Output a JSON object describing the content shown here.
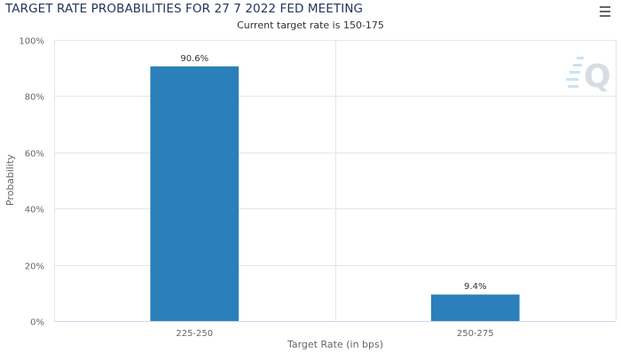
{
  "header": {
    "title": "TARGET RATE PROBABILITIES FOR 27 7 2022 FED MEETING",
    "subtitle": "Current target rate is 150-175"
  },
  "watermark": {
    "letter": "Q"
  },
  "icons": {
    "menu": "hamburger-menu-icon"
  },
  "colors": {
    "bar": "#2b7fba",
    "grid": "#e6e6e6",
    "axis_line": "#ccd6eb",
    "title": "#24345c"
  },
  "chart_data": {
    "type": "bar",
    "categories": [
      "225-250",
      "250-275"
    ],
    "values": [
      90.6,
      9.4
    ],
    "data_labels": [
      "90.6%",
      "9.4%"
    ],
    "title": "TARGET RATE PROBABILITIES FOR 27 7 2022 FED MEETING",
    "subtitle": "Current target rate is 150-175",
    "xlabel": "Target Rate (in bps)",
    "ylabel": "Probability",
    "ylim": [
      0,
      100
    ],
    "yticks": [
      0,
      20,
      40,
      60,
      80,
      100
    ],
    "ytick_labels": [
      "0%",
      "20%",
      "40%",
      "60%",
      "80%",
      "100%"
    ],
    "grid": true,
    "legend": false
  }
}
